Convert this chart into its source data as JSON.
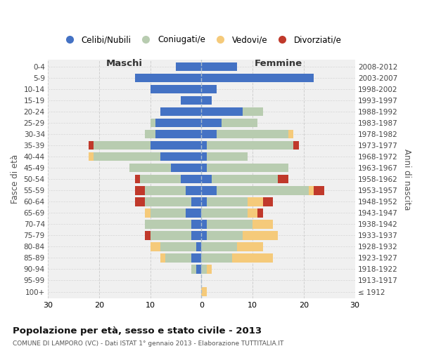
{
  "age_groups": [
    "100+",
    "95-99",
    "90-94",
    "85-89",
    "80-84",
    "75-79",
    "70-74",
    "65-69",
    "60-64",
    "55-59",
    "50-54",
    "45-49",
    "40-44",
    "35-39",
    "30-34",
    "25-29",
    "20-24",
    "15-19",
    "10-14",
    "5-9",
    "0-4"
  ],
  "birth_years": [
    "≤ 1912",
    "1913-1917",
    "1918-1922",
    "1923-1927",
    "1928-1932",
    "1933-1937",
    "1938-1942",
    "1943-1947",
    "1948-1952",
    "1953-1957",
    "1958-1962",
    "1963-1967",
    "1968-1972",
    "1973-1977",
    "1978-1982",
    "1983-1987",
    "1988-1992",
    "1993-1997",
    "1998-2002",
    "2003-2007",
    "2008-2012"
  ],
  "colors": {
    "celibe": "#4472C4",
    "coniugato": "#B8CCB0",
    "vedovo": "#F5CA7A",
    "divorziato": "#C0392B"
  },
  "males": {
    "celibe": [
      0,
      0,
      1,
      2,
      1,
      2,
      2,
      3,
      2,
      3,
      4,
      6,
      8,
      10,
      9,
      9,
      8,
      4,
      10,
      13,
      5
    ],
    "coniugato": [
      0,
      0,
      1,
      5,
      7,
      8,
      9,
      7,
      9,
      8,
      8,
      8,
      13,
      11,
      2,
      1,
      0,
      0,
      0,
      0,
      0
    ],
    "vedovo": [
      0,
      0,
      0,
      1,
      2,
      0,
      0,
      1,
      0,
      0,
      0,
      0,
      1,
      0,
      0,
      0,
      0,
      0,
      0,
      0,
      0
    ],
    "divorziato": [
      0,
      0,
      0,
      0,
      0,
      1,
      0,
      0,
      2,
      2,
      1,
      0,
      0,
      1,
      0,
      0,
      0,
      0,
      0,
      0,
      0
    ]
  },
  "females": {
    "nubile": [
      0,
      0,
      0,
      0,
      0,
      1,
      1,
      0,
      1,
      3,
      2,
      1,
      1,
      1,
      3,
      4,
      8,
      2,
      3,
      22,
      7
    ],
    "coniugata": [
      0,
      0,
      1,
      6,
      7,
      7,
      9,
      9,
      8,
      18,
      13,
      16,
      8,
      17,
      14,
      7,
      4,
      0,
      0,
      0,
      0
    ],
    "vedova": [
      1,
      0,
      1,
      8,
      5,
      7,
      4,
      2,
      3,
      1,
      0,
      0,
      0,
      0,
      1,
      0,
      0,
      0,
      0,
      0,
      0
    ],
    "divorziata": [
      0,
      0,
      0,
      0,
      0,
      0,
      0,
      1,
      2,
      2,
      2,
      0,
      0,
      1,
      0,
      0,
      0,
      0,
      0,
      0,
      0
    ]
  },
  "title": "Popolazione per età, sesso e stato civile - 2013",
  "subtitle": "COMUNE DI LAMPORO (VC) - Dati ISTAT 1° gennaio 2013 - Elaborazione TUTTITALIA.IT",
  "ylabel_left": "Fasce di età",
  "ylabel_right": "Anni di nascita",
  "xlabel_left": "Maschi",
  "xlabel_right": "Femmine",
  "xlim": 30,
  "background_color": "#ffffff",
  "grid_color": "#cccccc",
  "legend_labels": [
    "Celibi/Nubili",
    "Coniugati/e",
    "Vedovi/e",
    "Divorziati/e"
  ]
}
